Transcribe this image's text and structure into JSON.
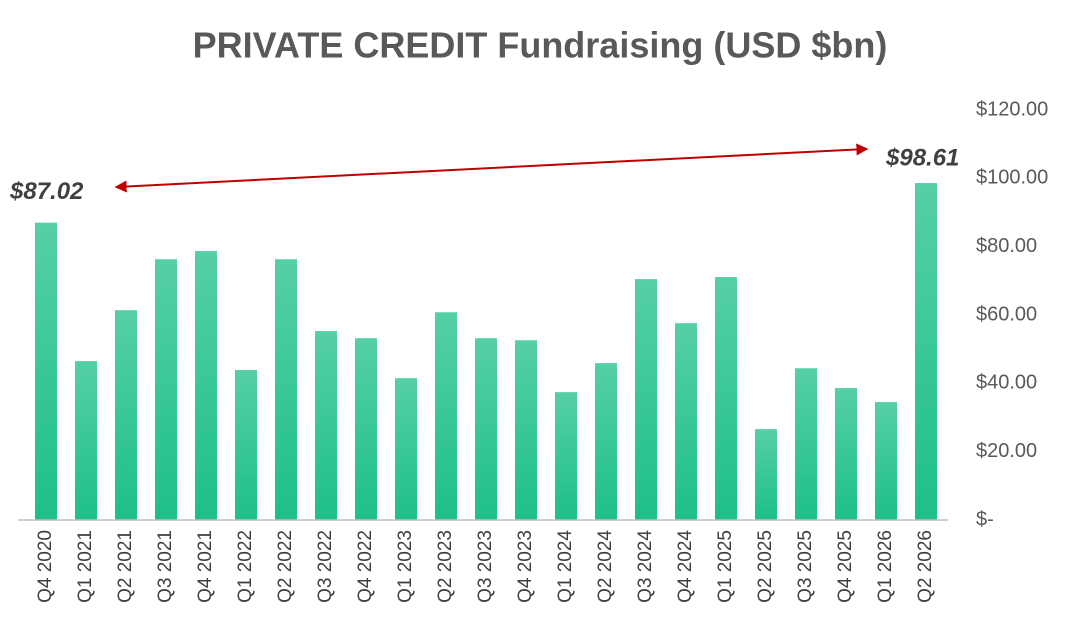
{
  "chart_data": {
    "type": "bar",
    "title": "PRIVATE CREDIT Fundraising (USD $bn)",
    "categories": [
      "Q4 2020",
      "Q1 2021",
      "Q2 2021",
      "Q3 2021",
      "Q4 2021",
      "Q1 2022",
      "Q2 2022",
      "Q3 2022",
      "Q4 2022",
      "Q1 2023",
      "Q2 2023",
      "Q3 2023",
      "Q4 2023",
      "Q1 2024",
      "Q2 2024",
      "Q3 2024",
      "Q4 2024",
      "Q1 2025",
      "Q2 2025",
      "Q3 2025",
      "Q4 2025",
      "Q1 2026",
      "Q2 2026"
    ],
    "values": [
      87.02,
      46.5,
      61.4,
      76.3,
      78.7,
      43.9,
      76.3,
      55.3,
      53.2,
      41.5,
      60.8,
      53.2,
      52.6,
      37.4,
      45.9,
      70.5,
      57.6,
      71.1,
      26.6,
      44.4,
      38.6,
      34.5,
      98.61
    ],
    "value_labels": [
      "$87.02",
      null,
      null,
      null,
      null,
      null,
      null,
      null,
      null,
      null,
      null,
      null,
      null,
      null,
      null,
      null,
      null,
      null,
      null,
      null,
      null,
      null,
      "$98.61"
    ],
    "color": "#1dbf8a",
    "ylim": [
      0,
      120
    ],
    "yticks": [
      {
        "value": 0,
        "label": "$-"
      },
      {
        "value": 20,
        "label": "$20.00"
      },
      {
        "value": 40,
        "label": "$40.00"
      },
      {
        "value": 60,
        "label": "$60.00"
      },
      {
        "value": 80,
        "label": "$80.00"
      },
      {
        "value": 100,
        "label": "$100.00"
      },
      {
        "value": 120,
        "label": "$120.00"
      }
    ],
    "y_axis_side": "right",
    "grid": false
  }
}
